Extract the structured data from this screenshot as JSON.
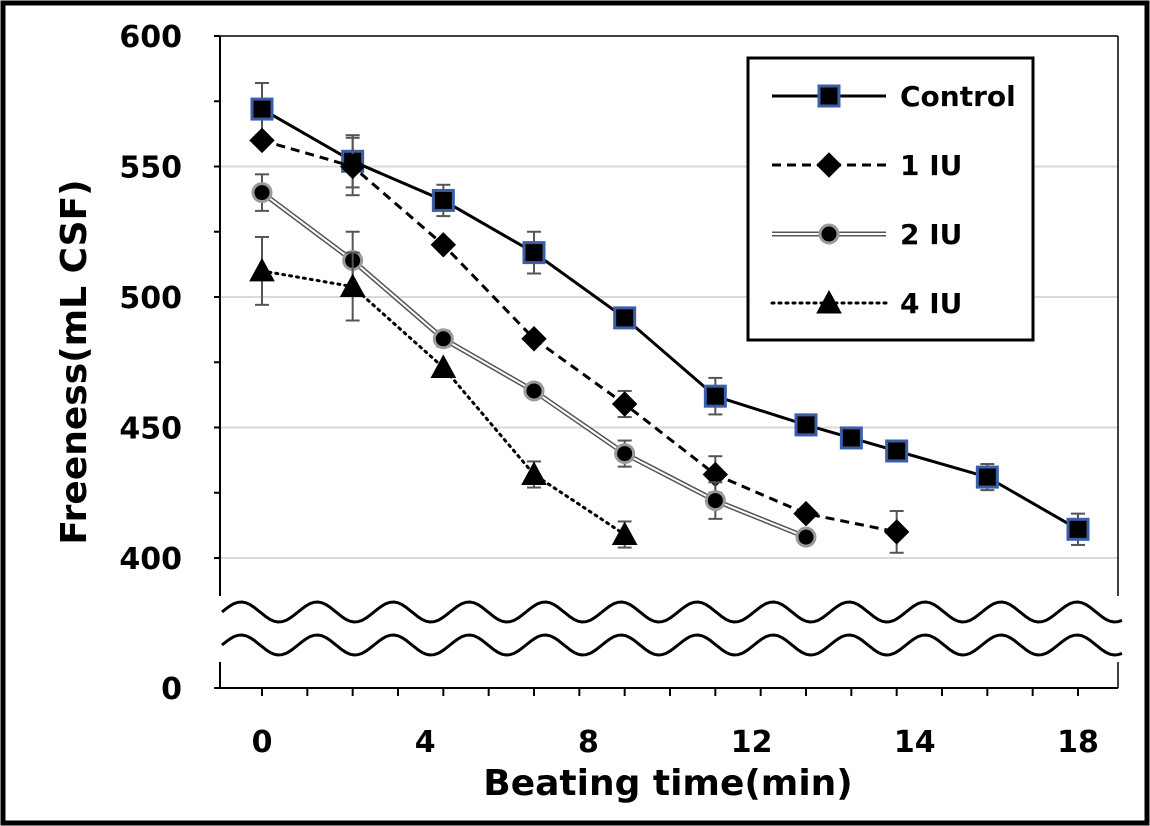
{
  "chart_data": {
    "type": "line",
    "title": "",
    "xlabel": "Beating time(min)",
    "ylabel": "Freeness(mL CSF)",
    "x_tick_labels": [
      "0",
      "4",
      "8",
      "12",
      "14",
      "18"
    ],
    "y_tick_labels": [
      "600",
      "550",
      "500",
      "450",
      "400",
      "0"
    ],
    "ylim": [
      400,
      600
    ],
    "y_axis_break": true,
    "grid": "horizontal",
    "legend_position": "top-right",
    "series": [
      {
        "name": "Control",
        "marker": "square",
        "line_style": "solid",
        "marker_fill": "#000000",
        "marker_edge": "#3a5fa8",
        "points": [
          {
            "x": "0",
            "y": 572,
            "err": 10
          },
          {
            "x": "2",
            "y": 552,
            "err": 10
          },
          {
            "x": "4",
            "y": 537,
            "err": 6
          },
          {
            "x": "6",
            "y": 517,
            "err": 8
          },
          {
            "x": "8",
            "y": 492,
            "err": 0
          },
          {
            "x": "10",
            "y": 462,
            "err": 7
          },
          {
            "x": "12",
            "y": 451,
            "err": 4
          },
          {
            "x": "13",
            "y": 446,
            "err": 0
          },
          {
            "x": "14",
            "y": 441,
            "err": 3
          },
          {
            "x": "16",
            "y": 431,
            "err": 5
          },
          {
            "x": "18",
            "y": 411,
            "err": 6
          }
        ]
      },
      {
        "name": "1 IU",
        "marker": "diamond",
        "line_style": "dashed",
        "marker_fill": "#000000",
        "marker_edge": "#000000",
        "points": [
          {
            "x": "0",
            "y": 560,
            "err": 0
          },
          {
            "x": "2",
            "y": 550,
            "err": 11
          },
          {
            "x": "4",
            "y": 520,
            "err": 0
          },
          {
            "x": "6",
            "y": 484,
            "err": 0
          },
          {
            "x": "8",
            "y": 459,
            "err": 5
          },
          {
            "x": "10",
            "y": 432,
            "err": 7
          },
          {
            "x": "12",
            "y": 417,
            "err": 0
          },
          {
            "x": "14",
            "y": 410,
            "err": 8
          }
        ]
      },
      {
        "name": "2 IU",
        "marker": "circle",
        "line_style": "double",
        "marker_fill": "#000000",
        "marker_edge": "#9a9a9a",
        "points": [
          {
            "x": "0",
            "y": 540,
            "err": 7
          },
          {
            "x": "2",
            "y": 514,
            "err": 11
          },
          {
            "x": "4",
            "y": 484,
            "err": 3
          },
          {
            "x": "6",
            "y": 464,
            "err": 0
          },
          {
            "x": "8",
            "y": 440,
            "err": 5
          },
          {
            "x": "10",
            "y": 422,
            "err": 7
          },
          {
            "x": "12",
            "y": 408,
            "err": 0
          }
        ]
      },
      {
        "name": "4 IU",
        "marker": "triangle",
        "line_style": "dotted",
        "marker_fill": "#000000",
        "marker_edge": "#000000",
        "points": [
          {
            "x": "0",
            "y": 510,
            "err": 13
          },
          {
            "x": "2",
            "y": 504,
            "err": 13
          },
          {
            "x": "4",
            "y": 473,
            "err": 0
          },
          {
            "x": "6",
            "y": 432,
            "err": 5
          },
          {
            "x": "8",
            "y": 409,
            "err": 5
          }
        ]
      }
    ]
  }
}
